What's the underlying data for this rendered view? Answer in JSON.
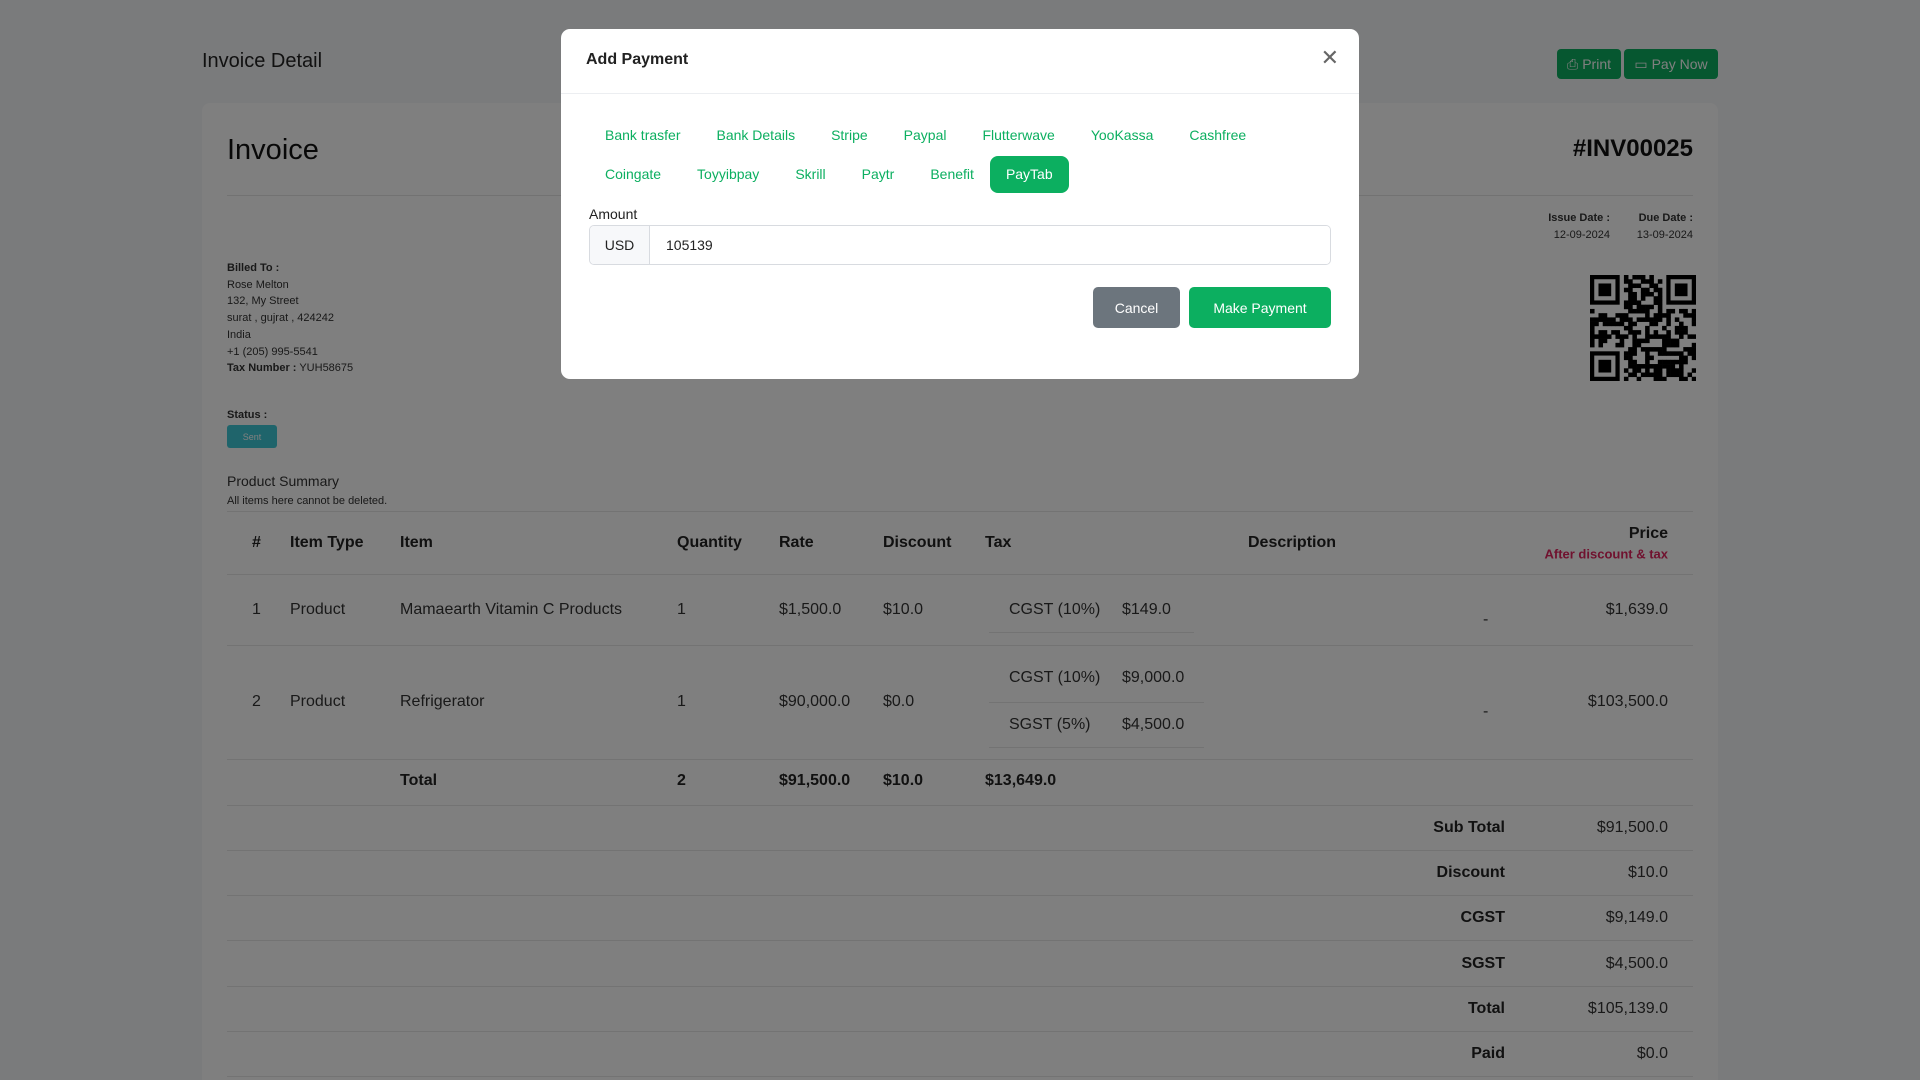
{
  "header": {
    "title": "Invoice Detail",
    "print_label": "Print",
    "pay_now_label": "Pay Now"
  },
  "invoice": {
    "title": "Invoice",
    "number": "#INV00025",
    "issue_date_label": "Issue Date :",
    "issue_date": "12-09-2024",
    "due_date_label": "Due Date :",
    "due_date": "13-09-2024",
    "billed_to_label": "Billed To :",
    "billed_lines": [
      "Rose Melton",
      "132, My Street",
      "surat , gujrat , 424242",
      "India",
      "+1 (205) 995-5541"
    ],
    "tax_number_label": "Tax Number :",
    "tax_number": "YUH58675",
    "status_label": "Status :",
    "status": "Sent",
    "summary_title": "Product Summary",
    "summary_note": "All items here cannot be deleted."
  },
  "table": {
    "headers": {
      "num": "#",
      "item_type": "Item Type",
      "item": "Item",
      "quantity": "Quantity",
      "rate": "Rate",
      "discount": "Discount",
      "tax": "Tax",
      "description": "Description",
      "price": "Price",
      "price_note": "After discount & tax"
    },
    "rows": [
      {
        "num": "1",
        "item_type": "Product",
        "item": "Mamaearth Vitamin C Products",
        "quantity": "1",
        "rate": "$1,500.0",
        "discount": "$10.0",
        "taxes": [
          {
            "name": "CGST (10%)",
            "amount": "$149.0"
          }
        ],
        "description": "-",
        "price": "$1,639.0"
      },
      {
        "num": "2",
        "item_type": "Product",
        "item": "Refrigerator",
        "quantity": "1",
        "rate": "$90,000.0",
        "discount": "$0.0",
        "taxes": [
          {
            "name": "CGST (10%)",
            "amount": "$9,000.0"
          },
          {
            "name": "SGST (5%)",
            "amount": "$4,500.0"
          }
        ],
        "description": "-",
        "price": "$103,500.0"
      }
    ],
    "total": {
      "label": "Total",
      "quantity": "2",
      "rate": "$91,500.0",
      "discount": "$10.0",
      "tax": "$13,649.0"
    }
  },
  "summary": [
    {
      "label": "Sub Total",
      "value": "$91,500.0"
    },
    {
      "label": "Discount",
      "value": "$10.0"
    },
    {
      "label": "CGST",
      "value": "$9,149.0"
    },
    {
      "label": "SGST",
      "value": "$4,500.0"
    },
    {
      "label": "Total",
      "value": "$105,139.0"
    },
    {
      "label": "Paid",
      "value": "$0.0"
    }
  ],
  "modal": {
    "title": "Add Payment",
    "tabs": [
      "Bank trasfer",
      "Bank Details",
      "Stripe",
      "Paypal",
      "Flutterwave",
      "YooKassa",
      "Cashfree",
      "Coingate",
      "Toyyibpay",
      "Skrill",
      "Paytr",
      "Benefit",
      "PayTab"
    ],
    "active_tab": "PayTab",
    "amount_label": "Amount",
    "currency": "USD",
    "amount_value": "105139",
    "cancel_label": "Cancel",
    "submit_label": "Make Payment"
  },
  "colors": {
    "accent": "#0caf60",
    "cancel": "#6c757d",
    "status_badge": "#3ec9d6",
    "price_note": "#e0245e"
  }
}
